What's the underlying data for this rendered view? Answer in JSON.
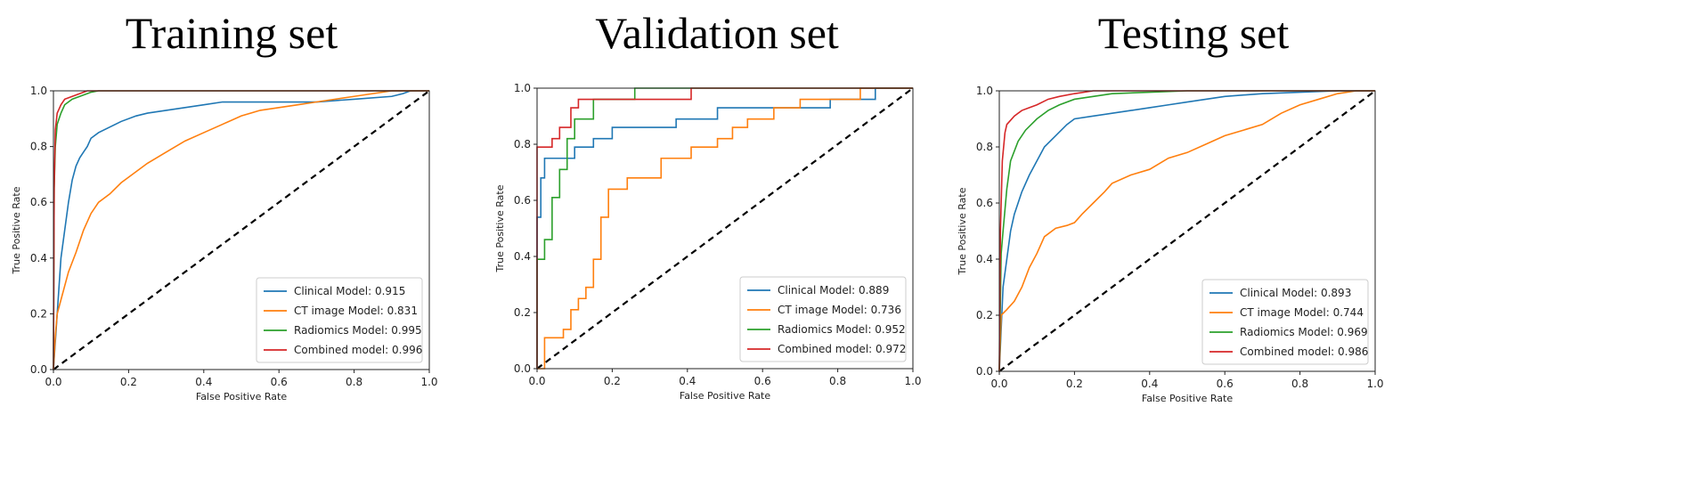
{
  "chart_data": [
    {
      "type": "line",
      "title": "Training set",
      "xlabel": "False Positive Rate",
      "ylabel": "True Positive Rate",
      "xlim": [
        0,
        1
      ],
      "ylim": [
        0,
        1
      ],
      "ticks": [
        "0.0",
        "0.2",
        "0.4",
        "0.6",
        "0.8",
        "1.0"
      ],
      "legend_position": "lower-right",
      "series": [
        {
          "name": "Clinical Model: 0.915",
          "color": "#1f77b4",
          "x": [
            0,
            0.005,
            0.01,
            0.015,
            0.02,
            0.03,
            0.04,
            0.05,
            0.06,
            0.07,
            0.08,
            0.09,
            0.1,
            0.12,
            0.15,
            0.18,
            0.22,
            0.25,
            0.3,
            0.35,
            0.4,
            0.45,
            0.5,
            0.6,
            0.7,
            0.8,
            0.9,
            0.93,
            0.95,
            1.0
          ],
          "y": [
            0,
            0.1,
            0.2,
            0.3,
            0.4,
            0.5,
            0.6,
            0.68,
            0.73,
            0.76,
            0.78,
            0.8,
            0.83,
            0.85,
            0.87,
            0.89,
            0.91,
            0.92,
            0.93,
            0.94,
            0.95,
            0.96,
            0.96,
            0.96,
            0.96,
            0.97,
            0.98,
            0.99,
            1.0,
            1.0
          ]
        },
        {
          "name": "CT image Model: 0.831",
          "color": "#ff7f0e",
          "x": [
            0,
            0.005,
            0.01,
            0.02,
            0.03,
            0.04,
            0.06,
            0.08,
            0.1,
            0.12,
            0.15,
            0.18,
            0.2,
            0.25,
            0.3,
            0.35,
            0.4,
            0.45,
            0.5,
            0.55,
            0.6,
            0.65,
            0.7,
            0.75,
            0.8,
            0.85,
            0.9,
            1.0
          ],
          "y": [
            0,
            0.12,
            0.2,
            0.25,
            0.3,
            0.35,
            0.42,
            0.5,
            0.56,
            0.6,
            0.63,
            0.67,
            0.69,
            0.74,
            0.78,
            0.82,
            0.85,
            0.88,
            0.91,
            0.93,
            0.94,
            0.95,
            0.96,
            0.97,
            0.98,
            0.99,
            1.0,
            1.0
          ]
        },
        {
          "name": "Radiomics Model: 0.995",
          "color": "#2ca02c",
          "x": [
            0,
            0.002,
            0.005,
            0.01,
            0.02,
            0.03,
            0.05,
            0.07,
            0.09,
            0.1,
            0.12,
            1.0
          ],
          "y": [
            0,
            0.65,
            0.8,
            0.88,
            0.92,
            0.95,
            0.97,
            0.98,
            0.99,
            0.995,
            1.0,
            1.0
          ]
        },
        {
          "name": "Combined model: 0.996",
          "color": "#d62728",
          "x": [
            0,
            0.002,
            0.005,
            0.01,
            0.02,
            0.03,
            0.05,
            0.07,
            0.09,
            1.0
          ],
          "y": [
            0,
            0.65,
            0.86,
            0.92,
            0.95,
            0.97,
            0.98,
            0.99,
            1.0,
            1.0
          ]
        }
      ]
    },
    {
      "type": "line",
      "title": "Validation set",
      "xlabel": "False Positive Rate",
      "ylabel": "True Positive Rate",
      "xlim": [
        0,
        1
      ],
      "ylim": [
        0,
        1
      ],
      "ticks": [
        "0.0",
        "0.2",
        "0.4",
        "0.6",
        "0.8",
        "1.0"
      ],
      "legend_position": "lower-right",
      "series": [
        {
          "name": "Clinical Model: 0.889",
          "color": "#1f77b4",
          "x": [
            0,
            0,
            0.01,
            0.01,
            0.02,
            0.02,
            0.05,
            0.05,
            0.1,
            0.1,
            0.15,
            0.15,
            0.2,
            0.2,
            0.37,
            0.37,
            0.48,
            0.48,
            0.62,
            0.62,
            0.78,
            0.78,
            0.85,
            0.85,
            0.9,
            0.9,
            1.0
          ],
          "y": [
            0,
            0.54,
            0.54,
            0.68,
            0.68,
            0.75,
            0.75,
            0.75,
            0.75,
            0.79,
            0.79,
            0.82,
            0.82,
            0.86,
            0.86,
            0.89,
            0.89,
            0.93,
            0.93,
            0.93,
            0.93,
            0.96,
            0.96,
            0.96,
            0.96,
            1.0,
            1.0
          ]
        },
        {
          "name": "CT image Model: 0.736",
          "color": "#ff7f0e",
          "x": [
            0,
            0.02,
            0.02,
            0.07,
            0.07,
            0.09,
            0.09,
            0.11,
            0.11,
            0.13,
            0.13,
            0.15,
            0.15,
            0.17,
            0.17,
            0.19,
            0.19,
            0.24,
            0.24,
            0.33,
            0.33,
            0.41,
            0.41,
            0.48,
            0.48,
            0.52,
            0.52,
            0.56,
            0.56,
            0.63,
            0.63,
            0.7,
            0.7,
            0.8,
            0.8,
            0.86,
            0.86,
            1.0
          ],
          "y": [
            0,
            0,
            0.11,
            0.11,
            0.14,
            0.14,
            0.21,
            0.21,
            0.25,
            0.25,
            0.29,
            0.29,
            0.39,
            0.39,
            0.54,
            0.54,
            0.64,
            0.64,
            0.68,
            0.68,
            0.75,
            0.75,
            0.79,
            0.79,
            0.82,
            0.82,
            0.86,
            0.86,
            0.89,
            0.89,
            0.93,
            0.93,
            0.96,
            0.96,
            0.96,
            0.96,
            1.0,
            1.0
          ]
        },
        {
          "name": "Radiomics Model: 0.952",
          "color": "#2ca02c",
          "x": [
            0,
            0,
            0.02,
            0.02,
            0.04,
            0.04,
            0.06,
            0.06,
            0.08,
            0.08,
            0.1,
            0.1,
            0.15,
            0.15,
            0.26,
            0.26,
            1.0
          ],
          "y": [
            0,
            0.39,
            0.39,
            0.46,
            0.46,
            0.61,
            0.61,
            0.71,
            0.71,
            0.82,
            0.82,
            0.89,
            0.89,
            0.96,
            0.96,
            1.0,
            1.0
          ]
        },
        {
          "name": "Combined model: 0.972",
          "color": "#d62728",
          "x": [
            0,
            0,
            0.04,
            0.04,
            0.06,
            0.06,
            0.09,
            0.09,
            0.11,
            0.11,
            0.41,
            0.41,
            1.0
          ],
          "y": [
            0,
            0.79,
            0.79,
            0.82,
            0.82,
            0.86,
            0.86,
            0.93,
            0.93,
            0.96,
            0.96,
            1.0,
            1.0
          ]
        }
      ]
    },
    {
      "type": "line",
      "title": "Testing set",
      "xlabel": "False Positive Rate",
      "ylabel": "True Positive Rate",
      "xlim": [
        0,
        1
      ],
      "ylim": [
        0,
        1
      ],
      "ticks": [
        "0.0",
        "0.2",
        "0.4",
        "0.6",
        "0.8",
        "1.0"
      ],
      "legend_position": "lower-right",
      "series": [
        {
          "name": "Clinical Model: 0.893",
          "color": "#1f77b4",
          "x": [
            0,
            0.005,
            0.01,
            0.02,
            0.03,
            0.04,
            0.05,
            0.06,
            0.08,
            0.1,
            0.12,
            0.15,
            0.18,
            0.2,
            0.25,
            0.3,
            0.35,
            0.4,
            0.45,
            0.5,
            0.55,
            0.6,
            0.7,
            0.8,
            0.9,
            1.0
          ],
          "y": [
            0,
            0.15,
            0.3,
            0.4,
            0.5,
            0.56,
            0.6,
            0.64,
            0.7,
            0.75,
            0.8,
            0.84,
            0.88,
            0.9,
            0.91,
            0.92,
            0.93,
            0.94,
            0.95,
            0.96,
            0.97,
            0.98,
            0.99,
            0.995,
            1.0,
            1.0
          ]
        },
        {
          "name": "CT image Model: 0.744",
          "color": "#ff7f0e",
          "x": [
            0,
            0.005,
            0.02,
            0.04,
            0.06,
            0.08,
            0.1,
            0.12,
            0.15,
            0.18,
            0.2,
            0.22,
            0.25,
            0.28,
            0.3,
            0.35,
            0.4,
            0.45,
            0.5,
            0.55,
            0.6,
            0.65,
            0.7,
            0.75,
            0.8,
            0.85,
            0.9,
            0.95,
            1.0
          ],
          "y": [
            0,
            0.2,
            0.22,
            0.25,
            0.3,
            0.37,
            0.42,
            0.48,
            0.51,
            0.52,
            0.53,
            0.56,
            0.6,
            0.64,
            0.67,
            0.7,
            0.72,
            0.76,
            0.78,
            0.81,
            0.84,
            0.86,
            0.88,
            0.92,
            0.95,
            0.97,
            0.99,
            1.0,
            1.0
          ]
        },
        {
          "name": "Radiomics Model: 0.969",
          "color": "#2ca02c",
          "x": [
            0,
            0.005,
            0.01,
            0.02,
            0.03,
            0.05,
            0.07,
            0.1,
            0.13,
            0.16,
            0.2,
            0.25,
            0.3,
            0.4,
            0.5,
            1.0
          ],
          "y": [
            0,
            0.42,
            0.5,
            0.65,
            0.75,
            0.82,
            0.86,
            0.9,
            0.93,
            0.95,
            0.97,
            0.98,
            0.99,
            0.995,
            1.0,
            1.0
          ]
        },
        {
          "name": "Combined model: 0.986",
          "color": "#d62728",
          "x": [
            0,
            0.003,
            0.008,
            0.015,
            0.02,
            0.04,
            0.06,
            0.08,
            0.1,
            0.13,
            0.16,
            0.2,
            0.25,
            1.0
          ],
          "y": [
            0,
            0.5,
            0.75,
            0.85,
            0.88,
            0.91,
            0.93,
            0.94,
            0.95,
            0.97,
            0.98,
            0.99,
            1.0,
            1.0
          ]
        }
      ]
    }
  ]
}
